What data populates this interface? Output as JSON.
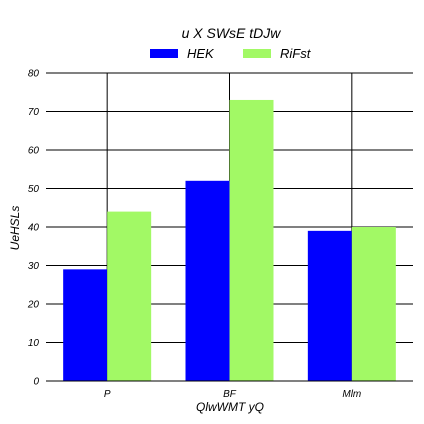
{
  "chart_data": {
    "type": "bar",
    "title": "u X SWsE tDJw",
    "xlabel": "QlwWMT yQ",
    "ylabel": "UeHSLs",
    "categories": [
      "P",
      "BF",
      "Mlm"
    ],
    "series": [
      {
        "name": "HEK",
        "values": [
          29,
          52,
          39
        ],
        "color": "#0000ff"
      },
      {
        "name": "RiFst",
        "values": [
          44,
          73,
          40
        ],
        "color": "#a2f965"
      }
    ],
    "ylim": [
      0,
      80
    ],
    "yticks": [
      0,
      10,
      20,
      30,
      40,
      50,
      60,
      70,
      80
    ],
    "grid": true,
    "legend": "top-center"
  }
}
